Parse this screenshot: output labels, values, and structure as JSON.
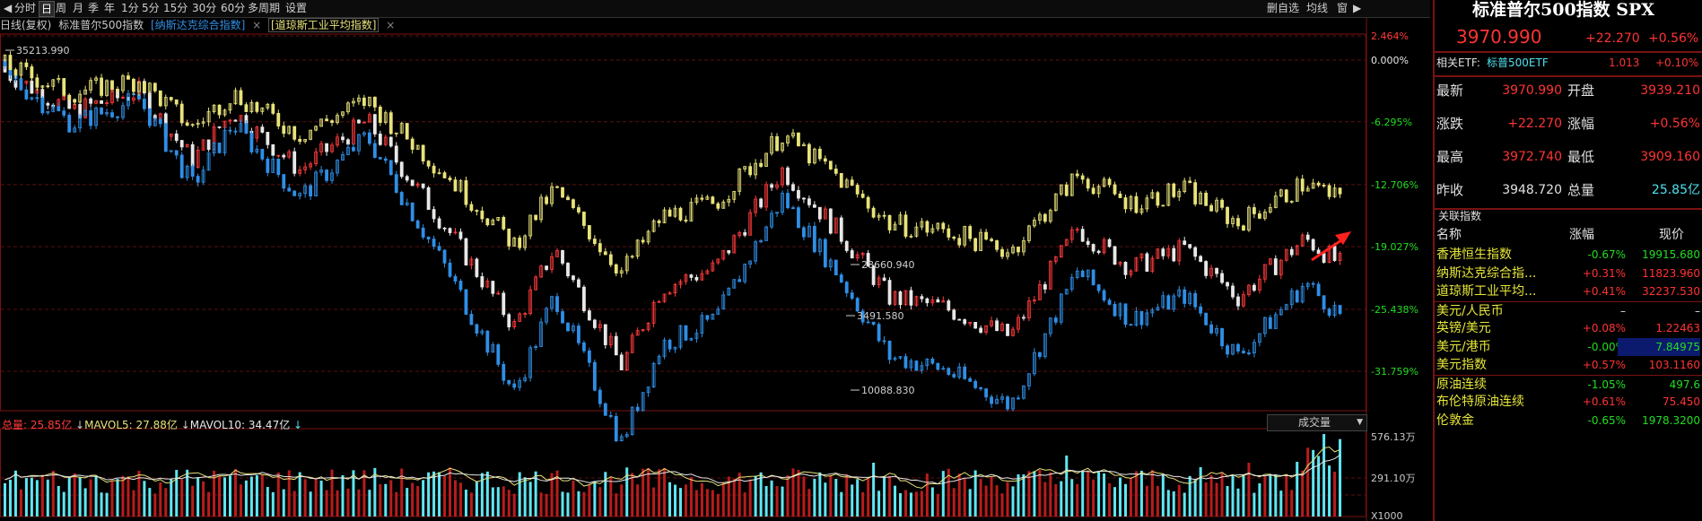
{
  "toolbar": {
    "items": [
      "分时",
      "日",
      "周",
      "月",
      "季",
      "年",
      "1分",
      "5分",
      "15分",
      "30分",
      "60分",
      "多周期",
      "设置"
    ],
    "active": "日",
    "right_items": [
      "删自选",
      "均线",
      "窗"
    ]
  },
  "subtitle": {
    "mode": "日线(复权)",
    "main_index": "标准普尔500指数",
    "compare1": "[纳斯达克综合指数]",
    "compare2": "[道琼斯工业平均指数]",
    "close_mark": "×"
  },
  "chart_data": [
    {
      "type": "candlestick",
      "series": [
        {
          "name": "标准普尔500指数",
          "start": 4796,
          "end": 3970.99,
          "low": 3491.58,
          "color": "#e8e8e8",
          "up_color": "#ff3b3b"
        },
        {
          "name": "纳斯达克综合指数",
          "start": 15832,
          "end": 11823.96,
          "low": 10088.83,
          "color": "#2f8fe6"
        },
        {
          "name": "道琼斯工业平均指数",
          "start": 36799,
          "end": 32237.53,
          "low": 28660.94,
          "color": "#e8e37a"
        }
      ],
      "annotations": [
        "35213.990",
        "28660.940",
        "3491.580",
        "10088.830"
      ],
      "y_axis_percent": [
        "2.464%",
        "0.000%",
        "-6.295%",
        "-12.706%",
        "-19.027%",
        "-25.438%",
        "-31.759%"
      ]
    },
    {
      "type": "bar",
      "title": "成交量",
      "legend": {
        "total_label": "总量: ",
        "total": "25.85亿",
        "ma5_label": "MAVOL5: ",
        "ma5": "27.88亿",
        "ma10_label": "MAVOL10: ",
        "ma10": "34.47亿"
      },
      "y_axis": [
        "576.13万",
        "291.10万",
        "X1000"
      ]
    }
  ],
  "panel": {
    "title": "标准普尔500指数 SPX",
    "price": "3970.990",
    "change": "+22.270",
    "change_pct": "+0.56%",
    "etf_label": "相关ETF:",
    "etf_name": "标普500ETF",
    "etf_price": "1.013",
    "etf_pct": "+0.10%",
    "stats": [
      {
        "l1": "最新",
        "v1": "3970.990",
        "c1": "red",
        "l2": "开盘",
        "v2": "3939.210",
        "c2": "red"
      },
      {
        "l1": "涨跌",
        "v1": "+22.270",
        "c1": "red",
        "l2": "涨幅",
        "v2": "+0.56%",
        "c2": "red"
      },
      {
        "l1": "最高",
        "v1": "3972.740",
        "c1": "red",
        "l2": "最低",
        "v2": "3909.160",
        "c2": "red"
      },
      {
        "l1": "昨收",
        "v1": "3948.720",
        "c1": "white",
        "l2": "总量",
        "v2": "25.85亿",
        "c2": "cyan"
      }
    ],
    "related_title": "关联指数",
    "related_header": {
      "name": "名称",
      "pct": "涨幅",
      "price": "现价"
    },
    "related": [
      {
        "name": "香港恒生指数",
        "pct": "-0.67%",
        "price": "19915.680",
        "c": "green"
      },
      {
        "name": "纳斯达克综合指...",
        "pct": "+0.31%",
        "price": "11823.960",
        "c": "red"
      },
      {
        "name": "道琼斯工业平均...",
        "pct": "+0.41%",
        "price": "32237.530",
        "c": "red"
      },
      {
        "name": "美元/人民币",
        "pct": "–",
        "price": "–",
        "c": "white"
      },
      {
        "name": "英镑/美元",
        "pct": "+0.08%",
        "price": "1.22463",
        "c": "red"
      },
      {
        "name": "美元/港币",
        "pct": "-0.00%",
        "price": "7.84975",
        "c": "green"
      },
      {
        "name": "美元指数",
        "pct": "+0.57%",
        "price": "103.1160",
        "c": "red"
      },
      {
        "name": "原油连续",
        "pct": "-1.05%",
        "price": "497.6",
        "c": "green"
      },
      {
        "name": "布伦特原油连续",
        "pct": "+0.61%",
        "price": "75.450",
        "c": "red"
      },
      {
        "name": "伦敦金",
        "pct": "-0.65%",
        "price": "1978.3200",
        "c": "green"
      }
    ]
  }
}
